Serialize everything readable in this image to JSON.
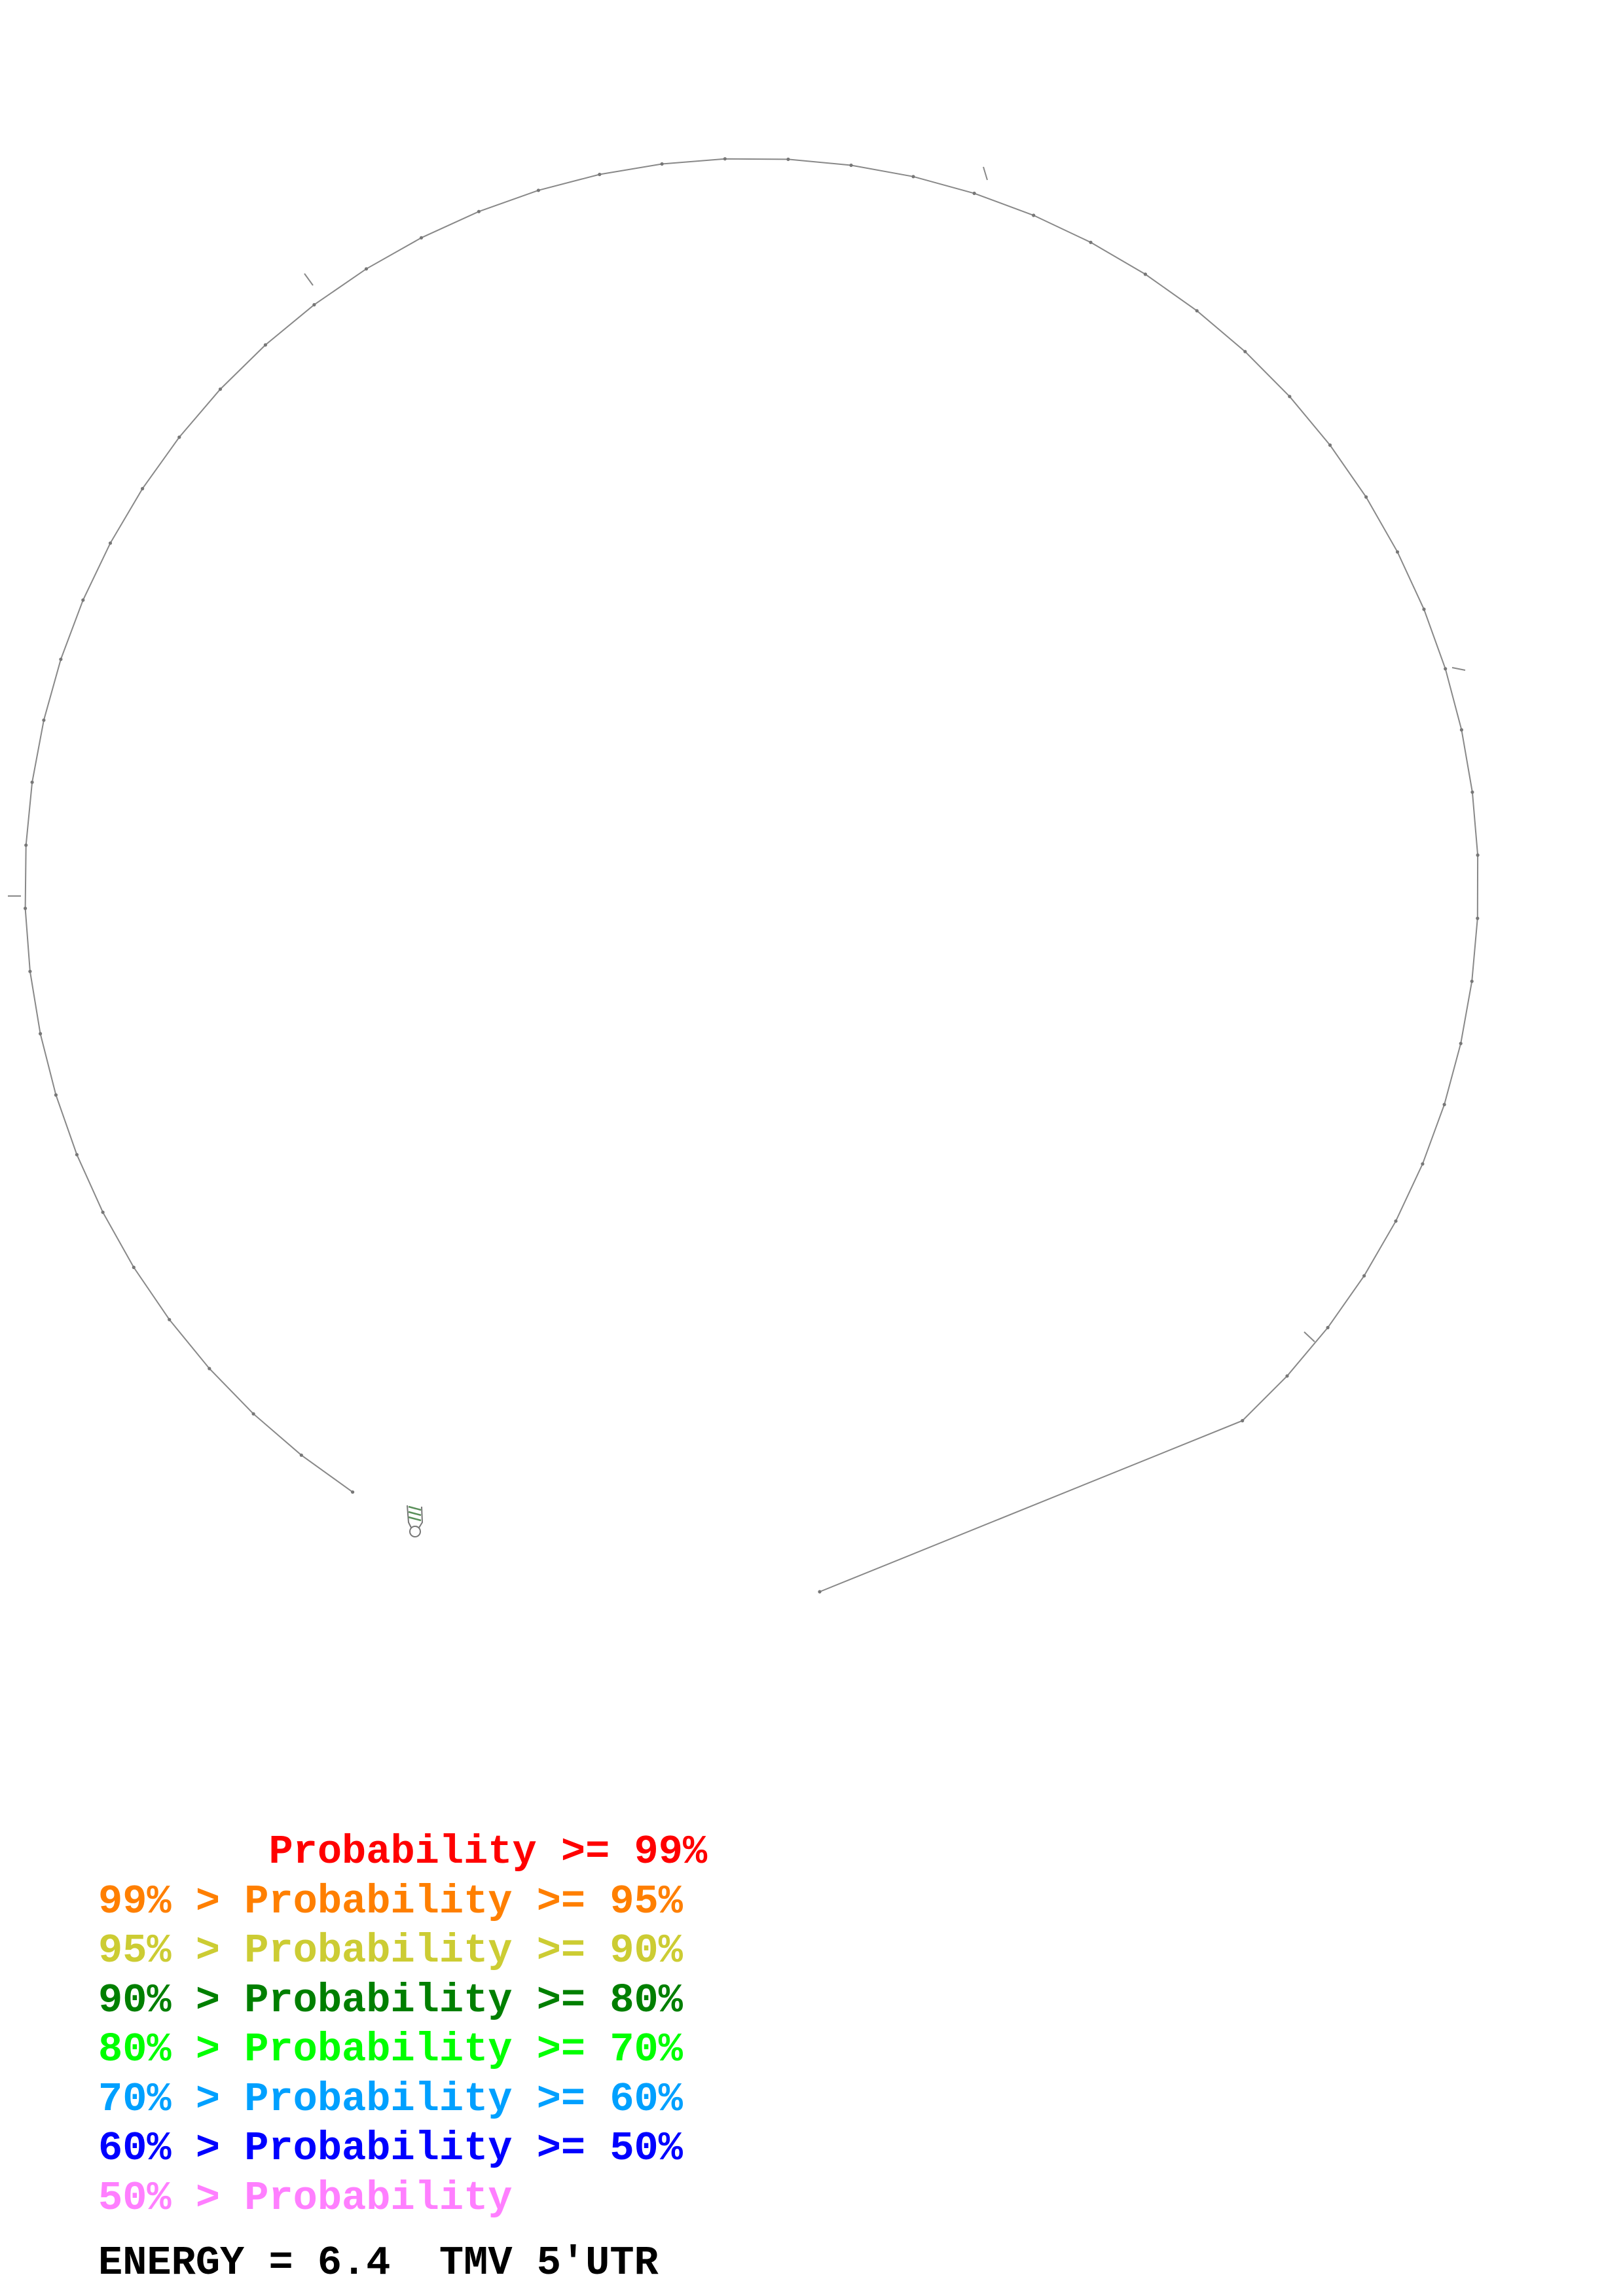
{
  "legend": {
    "rows": [
      {
        "text": "       Probability >= 99%",
        "color": "#ff0000"
      },
      {
        "text": "99% > Probability >= 95%",
        "color": "#ff7f00"
      },
      {
        "text": "95% > Probability >= 90%",
        "color": "#cccc33"
      },
      {
        "text": "90% > Probability >= 80%",
        "color": "#007f00"
      },
      {
        "text": "80% > Probability >= 70%",
        "color": "#00ff00"
      },
      {
        "text": "70% > Probability >= 60%",
        "color": "#00a0ff"
      },
      {
        "text": "60% > Probability >= 50%",
        "color": "#0000ff"
      },
      {
        "text": "50% > Probability",
        "color": "#ff7fff"
      }
    ]
  },
  "footer": {
    "energy_label": "ENERGY = 6.4",
    "sequence_name": "TMV 5'UTR"
  },
  "diagram": {
    "backbone_color": "#888888",
    "hairpin_color": "#5a8f5a",
    "pair_probability_band": "90% > Probability >= 80%"
  }
}
